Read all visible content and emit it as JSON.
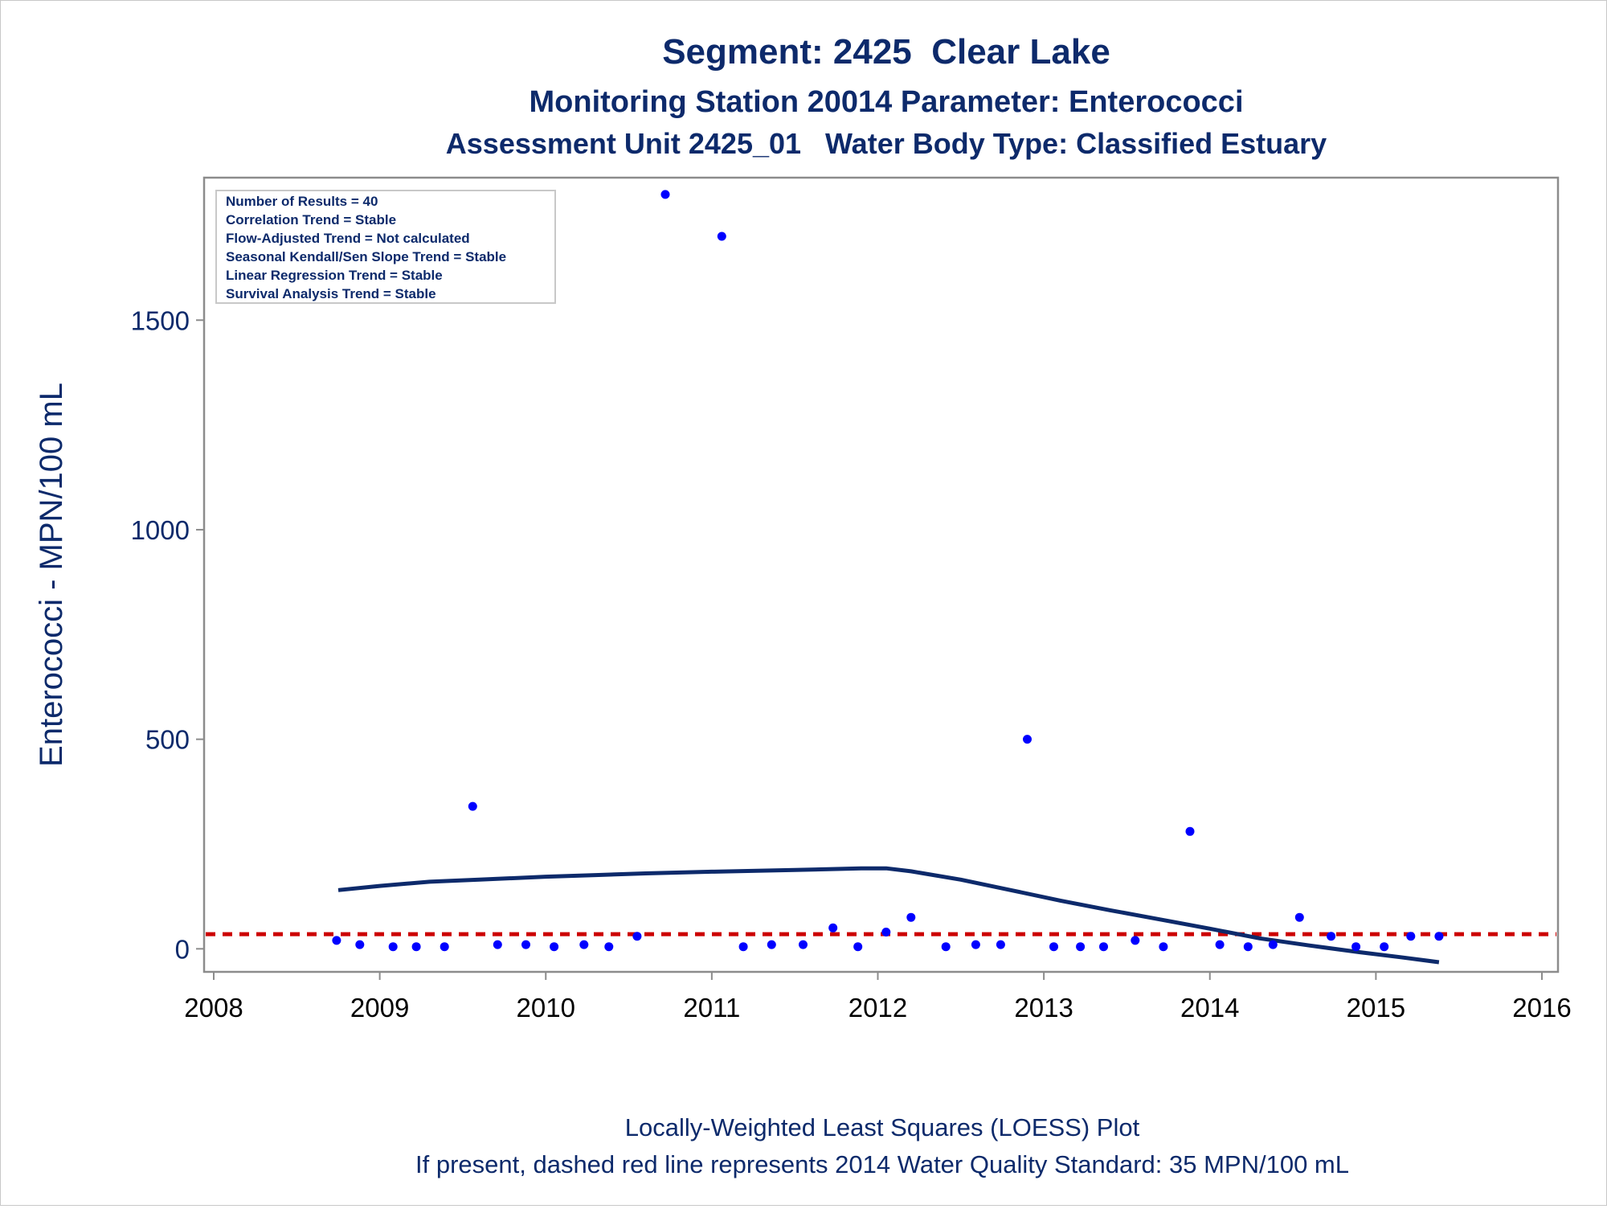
{
  "chart_data": {
    "type": "scatter",
    "title": "Segment: 2425  Clear Lake",
    "subtitle_1": "Monitoring Station 20014 Parameter: Enterococci",
    "subtitle_2": "Assessment Unit 2425_01   Water Body Type: Classified Estuary",
    "ylabel": "Enterococci - MPN/100 mL",
    "footnote_1": "Locally-Weighted Least Squares (LOESS) Plot",
    "footnote_2": "If present, dashed red line represents 2014 Water Quality Standard: 35 MPN/100 mL",
    "xlim": [
      2008,
      2016
    ],
    "ylim": [
      -55,
      1840
    ],
    "x_ticks": [
      2008,
      2009,
      2010,
      2011,
      2012,
      2013,
      2014,
      2015,
      2016
    ],
    "x_tick_labels": [
      "2008",
      "2009",
      "2010",
      "2011",
      "2012",
      "2013",
      "2014",
      "2015",
      "2016"
    ],
    "y_ticks": [
      0,
      500,
      1000,
      1500
    ],
    "y_tick_labels": [
      "0",
      "500",
      "1000",
      "1500"
    ],
    "grid": false,
    "legend_box": {
      "placement": "top-left",
      "lines": [
        "Number of Results = 40",
        "Correlation Trend = Stable",
        "Flow-Adjusted Trend = Not calculated",
        "Seasonal Kendall/Sen Slope Trend = Stable",
        "Linear Regression Trend = Stable",
        "Survival Analysis Trend = Stable"
      ]
    },
    "reference_line": {
      "y": 35,
      "style": "dashed",
      "color": "#cc0000"
    },
    "series": [
      {
        "type": "scatter",
        "color": "#0000ff",
        "points": [
          [
            2008.74,
            20
          ],
          [
            2008.88,
            10
          ],
          [
            2009.08,
            5
          ],
          [
            2009.22,
            5
          ],
          [
            2009.39,
            5
          ],
          [
            2009.56,
            340
          ],
          [
            2009.71,
            10
          ],
          [
            2009.88,
            10
          ],
          [
            2010.05,
            5
          ],
          [
            2010.23,
            10
          ],
          [
            2010.38,
            5
          ],
          [
            2010.55,
            30
          ],
          [
            2010.72,
            1800
          ],
          [
            2011.06,
            1700
          ],
          [
            2011.19,
            5
          ],
          [
            2011.36,
            10
          ],
          [
            2011.55,
            10
          ],
          [
            2011.73,
            50
          ],
          [
            2011.88,
            5
          ],
          [
            2012.05,
            40
          ],
          [
            2012.2,
            75
          ],
          [
            2012.41,
            5
          ],
          [
            2012.59,
            10
          ],
          [
            2012.74,
            10
          ],
          [
            2012.9,
            500
          ],
          [
            2013.06,
            5
          ],
          [
            2013.22,
            5
          ],
          [
            2013.36,
            5
          ],
          [
            2013.55,
            20
          ],
          [
            2013.72,
            5
          ],
          [
            2013.88,
            280
          ],
          [
            2014.06,
            10
          ],
          [
            2014.23,
            5
          ],
          [
            2014.38,
            10
          ],
          [
            2014.54,
            75
          ],
          [
            2014.73,
            30
          ],
          [
            2014.88,
            5
          ],
          [
            2015.05,
            5
          ],
          [
            2015.21,
            30
          ],
          [
            2015.38,
            30
          ]
        ]
      },
      {
        "type": "line",
        "color": "#0d2a6b",
        "points": [
          [
            2008.75,
            140
          ],
          [
            2009.0,
            150
          ],
          [
            2009.3,
            160
          ],
          [
            2009.6,
            165
          ],
          [
            2010.0,
            172
          ],
          [
            2010.3,
            176
          ],
          [
            2010.6,
            180
          ],
          [
            2011.0,
            184
          ],
          [
            2011.5,
            188
          ],
          [
            2011.9,
            192
          ],
          [
            2012.05,
            192
          ],
          [
            2012.2,
            185
          ],
          [
            2012.5,
            165
          ],
          [
            2012.8,
            140
          ],
          [
            2013.1,
            115
          ],
          [
            2013.4,
            92
          ],
          [
            2013.7,
            70
          ],
          [
            2014.0,
            48
          ],
          [
            2014.3,
            25
          ],
          [
            2014.6,
            8
          ],
          [
            2014.9,
            -8
          ],
          [
            2015.15,
            -20
          ],
          [
            2015.38,
            -32
          ]
        ]
      }
    ]
  }
}
